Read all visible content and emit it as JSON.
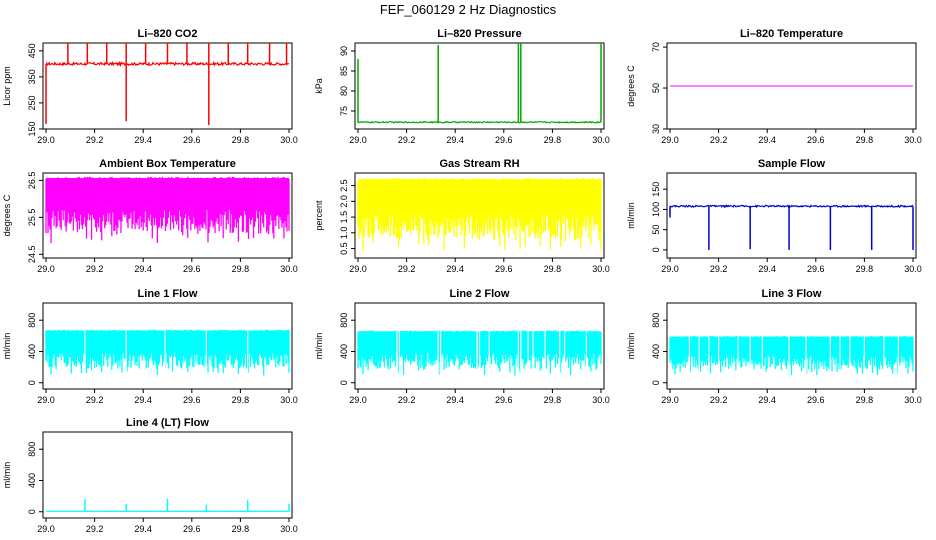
{
  "figure": {
    "title": "FEF_060129  2 Hz Diagnostics"
  },
  "chart_data": [
    {
      "id": "co2",
      "type": "line",
      "title": "Li–820 CO2",
      "ylabel": "Licor ppm",
      "xlim": [
        29.0,
        30.0
      ],
      "ylim": [
        150,
        480
      ],
      "xticks": [
        "29.0",
        "29.2",
        "29.4",
        "29.6",
        "29.8",
        "30.0"
      ],
      "yticks": [
        "150",
        "250",
        "350",
        "450"
      ],
      "color": "#ff0000",
      "pattern": "spiky",
      "baseline": 400,
      "noise": 5,
      "spikes": [
        [
          29.0,
          170
        ],
        [
          29.09,
          480
        ],
        [
          29.17,
          480
        ],
        [
          29.25,
          480
        ],
        [
          29.33,
          180
        ],
        [
          29.33,
          480
        ],
        [
          29.41,
          480
        ],
        [
          29.5,
          480
        ],
        [
          29.58,
          480
        ],
        [
          29.67,
          165
        ],
        [
          29.67,
          480
        ],
        [
          29.75,
          480
        ],
        [
          29.83,
          480
        ],
        [
          29.92,
          480
        ],
        [
          29.99,
          480
        ]
      ]
    },
    {
      "id": "pressure",
      "type": "line",
      "title": "Li–820 Pressure",
      "ylabel": "kPa",
      "xlim": [
        29.0,
        30.0
      ],
      "ylim": [
        70.5,
        92
      ],
      "xticks": [
        "29.0",
        "29.2",
        "29.4",
        "29.6",
        "29.8",
        "30.0"
      ],
      "yticks": [
        "75",
        "80",
        "85",
        "90"
      ],
      "color": "#00aa00",
      "pattern": "spiky",
      "baseline": 72.2,
      "noise": 0.15,
      "spikes": [
        [
          29.0,
          88
        ],
        [
          29.33,
          91.5
        ],
        [
          29.66,
          91.8
        ],
        [
          29.67,
          91.8
        ],
        [
          30.0,
          91.8
        ]
      ]
    },
    {
      "id": "temp",
      "type": "line",
      "title": "Li–820 Temperature",
      "ylabel": "degrees C",
      "xlim": [
        29.0,
        30.0
      ],
      "ylim": [
        30,
        72
      ],
      "xticks": [
        "29.0",
        "29.2",
        "29.4",
        "29.6",
        "29.8",
        "30.0"
      ],
      "yticks": [
        "30",
        "50",
        "70"
      ],
      "color": "#ff00ff",
      "pattern": "flat",
      "baseline": 51
    },
    {
      "id": "ambient",
      "type": "line",
      "title": "Ambient Box Temperature",
      "ylabel": "degrees C",
      "xlim": [
        29.0,
        30.0
      ],
      "ylim": [
        24.4,
        26.7
      ],
      "xticks": [
        "29.0",
        "29.2",
        "29.4",
        "29.6",
        "29.8",
        "30.0"
      ],
      "yticks": [
        "24.5",
        "25.5",
        "26.5"
      ],
      "color": "#ff00ff",
      "pattern": "band",
      "low": 24.8,
      "high": 26.6
    },
    {
      "id": "rh",
      "type": "line",
      "title": "Gas Stream RH",
      "ylabel": "percent",
      "xlim": [
        29.0,
        30.0
      ],
      "ylim": [
        0.2,
        2.9
      ],
      "xticks": [
        "29.0",
        "29.2",
        "29.4",
        "29.6",
        "29.8",
        "30.0"
      ],
      "yticks": [
        "0.5",
        "1.0",
        "1.5",
        "2.0",
        "2.5"
      ],
      "color": "#ffff00",
      "pattern": "band",
      "low": 0.4,
      "high": 2.75
    },
    {
      "id": "sample",
      "type": "line",
      "title": "Sample Flow",
      "ylabel": "ml/min",
      "xlim": [
        29.0,
        30.0
      ],
      "ylim": [
        -20,
        190
      ],
      "xticks": [
        "29.0",
        "29.2",
        "29.4",
        "29.6",
        "29.8",
        "30.0"
      ],
      "yticks": [
        "0",
        "50",
        "100",
        "150"
      ],
      "color": "#0000cc",
      "pattern": "spiky",
      "baseline": 108,
      "noise": 2,
      "spikes": [
        [
          29.0,
          80
        ],
        [
          29.16,
          0
        ],
        [
          29.33,
          2
        ],
        [
          29.49,
          0
        ],
        [
          29.66,
          0
        ],
        [
          29.83,
          0
        ],
        [
          30.0,
          0
        ]
      ]
    },
    {
      "id": "line1",
      "type": "line",
      "title": "Line 1 Flow",
      "ylabel": "ml/min",
      "xlim": [
        29.0,
        30.0
      ],
      "ylim": [
        -80,
        1020
      ],
      "xticks": [
        "29.0",
        "29.2",
        "29.4",
        "29.6",
        "29.8",
        "30.0"
      ],
      "yticks": [
        "0",
        "400",
        "800"
      ],
      "color": "#00ffff",
      "pattern": "band",
      "low": 90,
      "high": 680,
      "gaps": [
        29.16,
        29.33,
        29.49,
        29.66,
        29.83
      ]
    },
    {
      "id": "line2",
      "type": "line",
      "title": "Line 2 Flow",
      "ylabel": "ml/min",
      "xlim": [
        29.0,
        30.0
      ],
      "ylim": [
        -80,
        1020
      ],
      "xticks": [
        "29.0",
        "29.2",
        "29.4",
        "29.6",
        "29.8",
        "30.0"
      ],
      "yticks": [
        "0",
        "400",
        "800"
      ],
      "color": "#00ffff",
      "pattern": "band",
      "low": 90,
      "high": 670,
      "gaps": [
        29.16,
        29.17,
        29.33,
        29.34,
        29.49,
        29.5,
        29.54,
        29.66,
        29.67,
        29.7,
        29.72,
        29.77,
        29.83,
        29.85,
        29.94
      ]
    },
    {
      "id": "line3",
      "type": "line",
      "title": "Line 3 Flow",
      "ylabel": "ml/min",
      "xlim": [
        29.0,
        30.0
      ],
      "ylim": [
        -80,
        1020
      ],
      "xticks": [
        "29.0",
        "29.2",
        "29.4",
        "29.6",
        "29.8",
        "30.0"
      ],
      "yticks": [
        "0",
        "400",
        "800"
      ],
      "color": "#00ffff",
      "pattern": "band",
      "low": 90,
      "high": 600,
      "gaps": [
        29.08,
        29.12,
        29.16,
        29.2,
        29.28,
        29.33,
        29.38,
        29.49,
        29.56,
        29.66,
        29.7,
        29.74,
        29.8,
        29.88,
        29.94
      ]
    },
    {
      "id": "line4",
      "type": "line",
      "title": "Line 4 (LT) Flow",
      "ylabel": "ml/min",
      "xlim": [
        29.0,
        30.0
      ],
      "ylim": [
        -80,
        1020
      ],
      "xticks": [
        "29.0",
        "29.2",
        "29.4",
        "29.6",
        "29.8",
        "30.0"
      ],
      "yticks": [
        "0",
        "400",
        "800"
      ],
      "color": "#00ffff",
      "pattern": "spiky",
      "baseline": 5,
      "noise": 1,
      "spikes": [
        [
          29.16,
          160
        ],
        [
          29.33,
          100
        ],
        [
          29.5,
          165
        ],
        [
          29.66,
          90
        ],
        [
          29.83,
          150
        ],
        [
          30.0,
          100
        ]
      ]
    }
  ]
}
